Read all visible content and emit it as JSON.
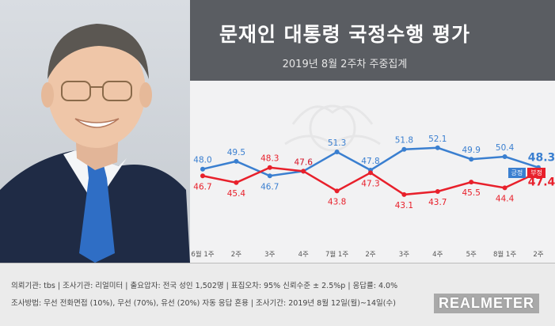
{
  "title": "문재인 대통령 국정수행 평가",
  "subtitle": "2019년 8월 2주차 주중집계",
  "legend": {
    "approve": "긍정",
    "disapprove": "부정"
  },
  "colors": {
    "approve": "#3a7fd0",
    "disapprove": "#e8202b",
    "header": "#5a5d62"
  },
  "footer": {
    "line1": "의뢰기관: tbs  |  조사기관: 리얼미터  |  출요압자: 전국 성인 1,502명  |  표집오차: 95% 신뢰수준 ± 2.5%p  |  응답률: 4.0%",
    "line2": "조사방법: 무선 전화면접 (10%), 무선 (70%), 유선 (20%) 자동 응답 혼용  |  조사기간: 2019년 8월 12일(월)~14일(수)",
    "brand": "REALMETER"
  },
  "chart_data": {
    "type": "line",
    "title": "문재인 대통령 국정수행 평가",
    "subtitle": "2019년 8월 2주차 주중집계",
    "categories": [
      "6월 1주",
      "2주",
      "3주",
      "4주",
      "7월 1주",
      "2주",
      "3주",
      "4주",
      "5주",
      "8월 1주",
      "2주"
    ],
    "series": [
      {
        "name": "긍정",
        "values": [
          48.0,
          49.5,
          46.7,
          47.6,
          51.3,
          47.8,
          51.8,
          52.1,
          49.9,
          50.4,
          48.3
        ]
      },
      {
        "name": "부정",
        "values": [
          46.7,
          45.4,
          48.3,
          47.6,
          43.8,
          47.3,
          43.1,
          43.7,
          45.5,
          44.4,
          47.4
        ]
      }
    ],
    "value_labels": {
      "approve": [
        "48.0",
        "49.5",
        "46.7",
        "47.6",
        "51.3",
        "47.8",
        "51.8",
        "52.1",
        "49.9",
        "50.4",
        "48.3"
      ],
      "disapprove": [
        "46.7",
        "45.4",
        "48.3",
        "47.6",
        "43.8",
        "47.3",
        "43.1",
        "43.7",
        "45.5",
        "44.4",
        "47.4"
      ]
    },
    "ylim": [
      30,
      65
    ],
    "grid": false,
    "legend_position": "top-right"
  }
}
